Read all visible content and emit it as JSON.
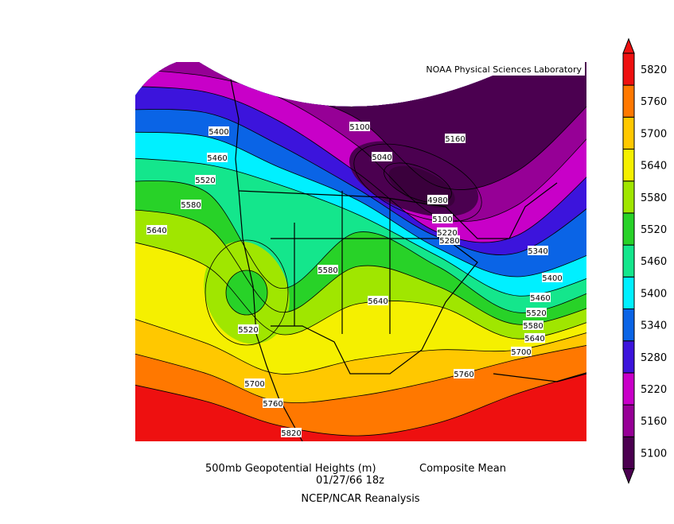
{
  "map": {
    "credit": "NOAA Physical Sciences Laboratory",
    "contour_labels": [
      5400,
      5460,
      5520,
      5580,
      5640,
      5100,
      5040,
      5160,
      4980,
      5100,
      5220,
      5280,
      5340,
      5400,
      5460,
      5520,
      5580,
      5640,
      5700,
      5580,
      5640,
      5520,
      5760,
      5700,
      5760,
      5820
    ],
    "colorbar": {
      "levels": [
        5100,
        5160,
        5220,
        5280,
        5340,
        5400,
        5460,
        5520,
        5580,
        5640,
        5700,
        5760,
        5820
      ],
      "colors": [
        "#4b0050",
        "#960096",
        "#c800c8",
        "#3c14dc",
        "#0a64e6",
        "#00f0ff",
        "#14e68c",
        "#28d228",
        "#a0e600",
        "#f5f000",
        "#ffc800",
        "#ff7800",
        "#ee1010"
      ]
    }
  },
  "caption": {
    "field": "500mb Geopotential Heights (m)",
    "statistic": "Composite Mean",
    "date": "01/27/66 18z",
    "source": "NCEP/NCAR Reanalysis"
  }
}
